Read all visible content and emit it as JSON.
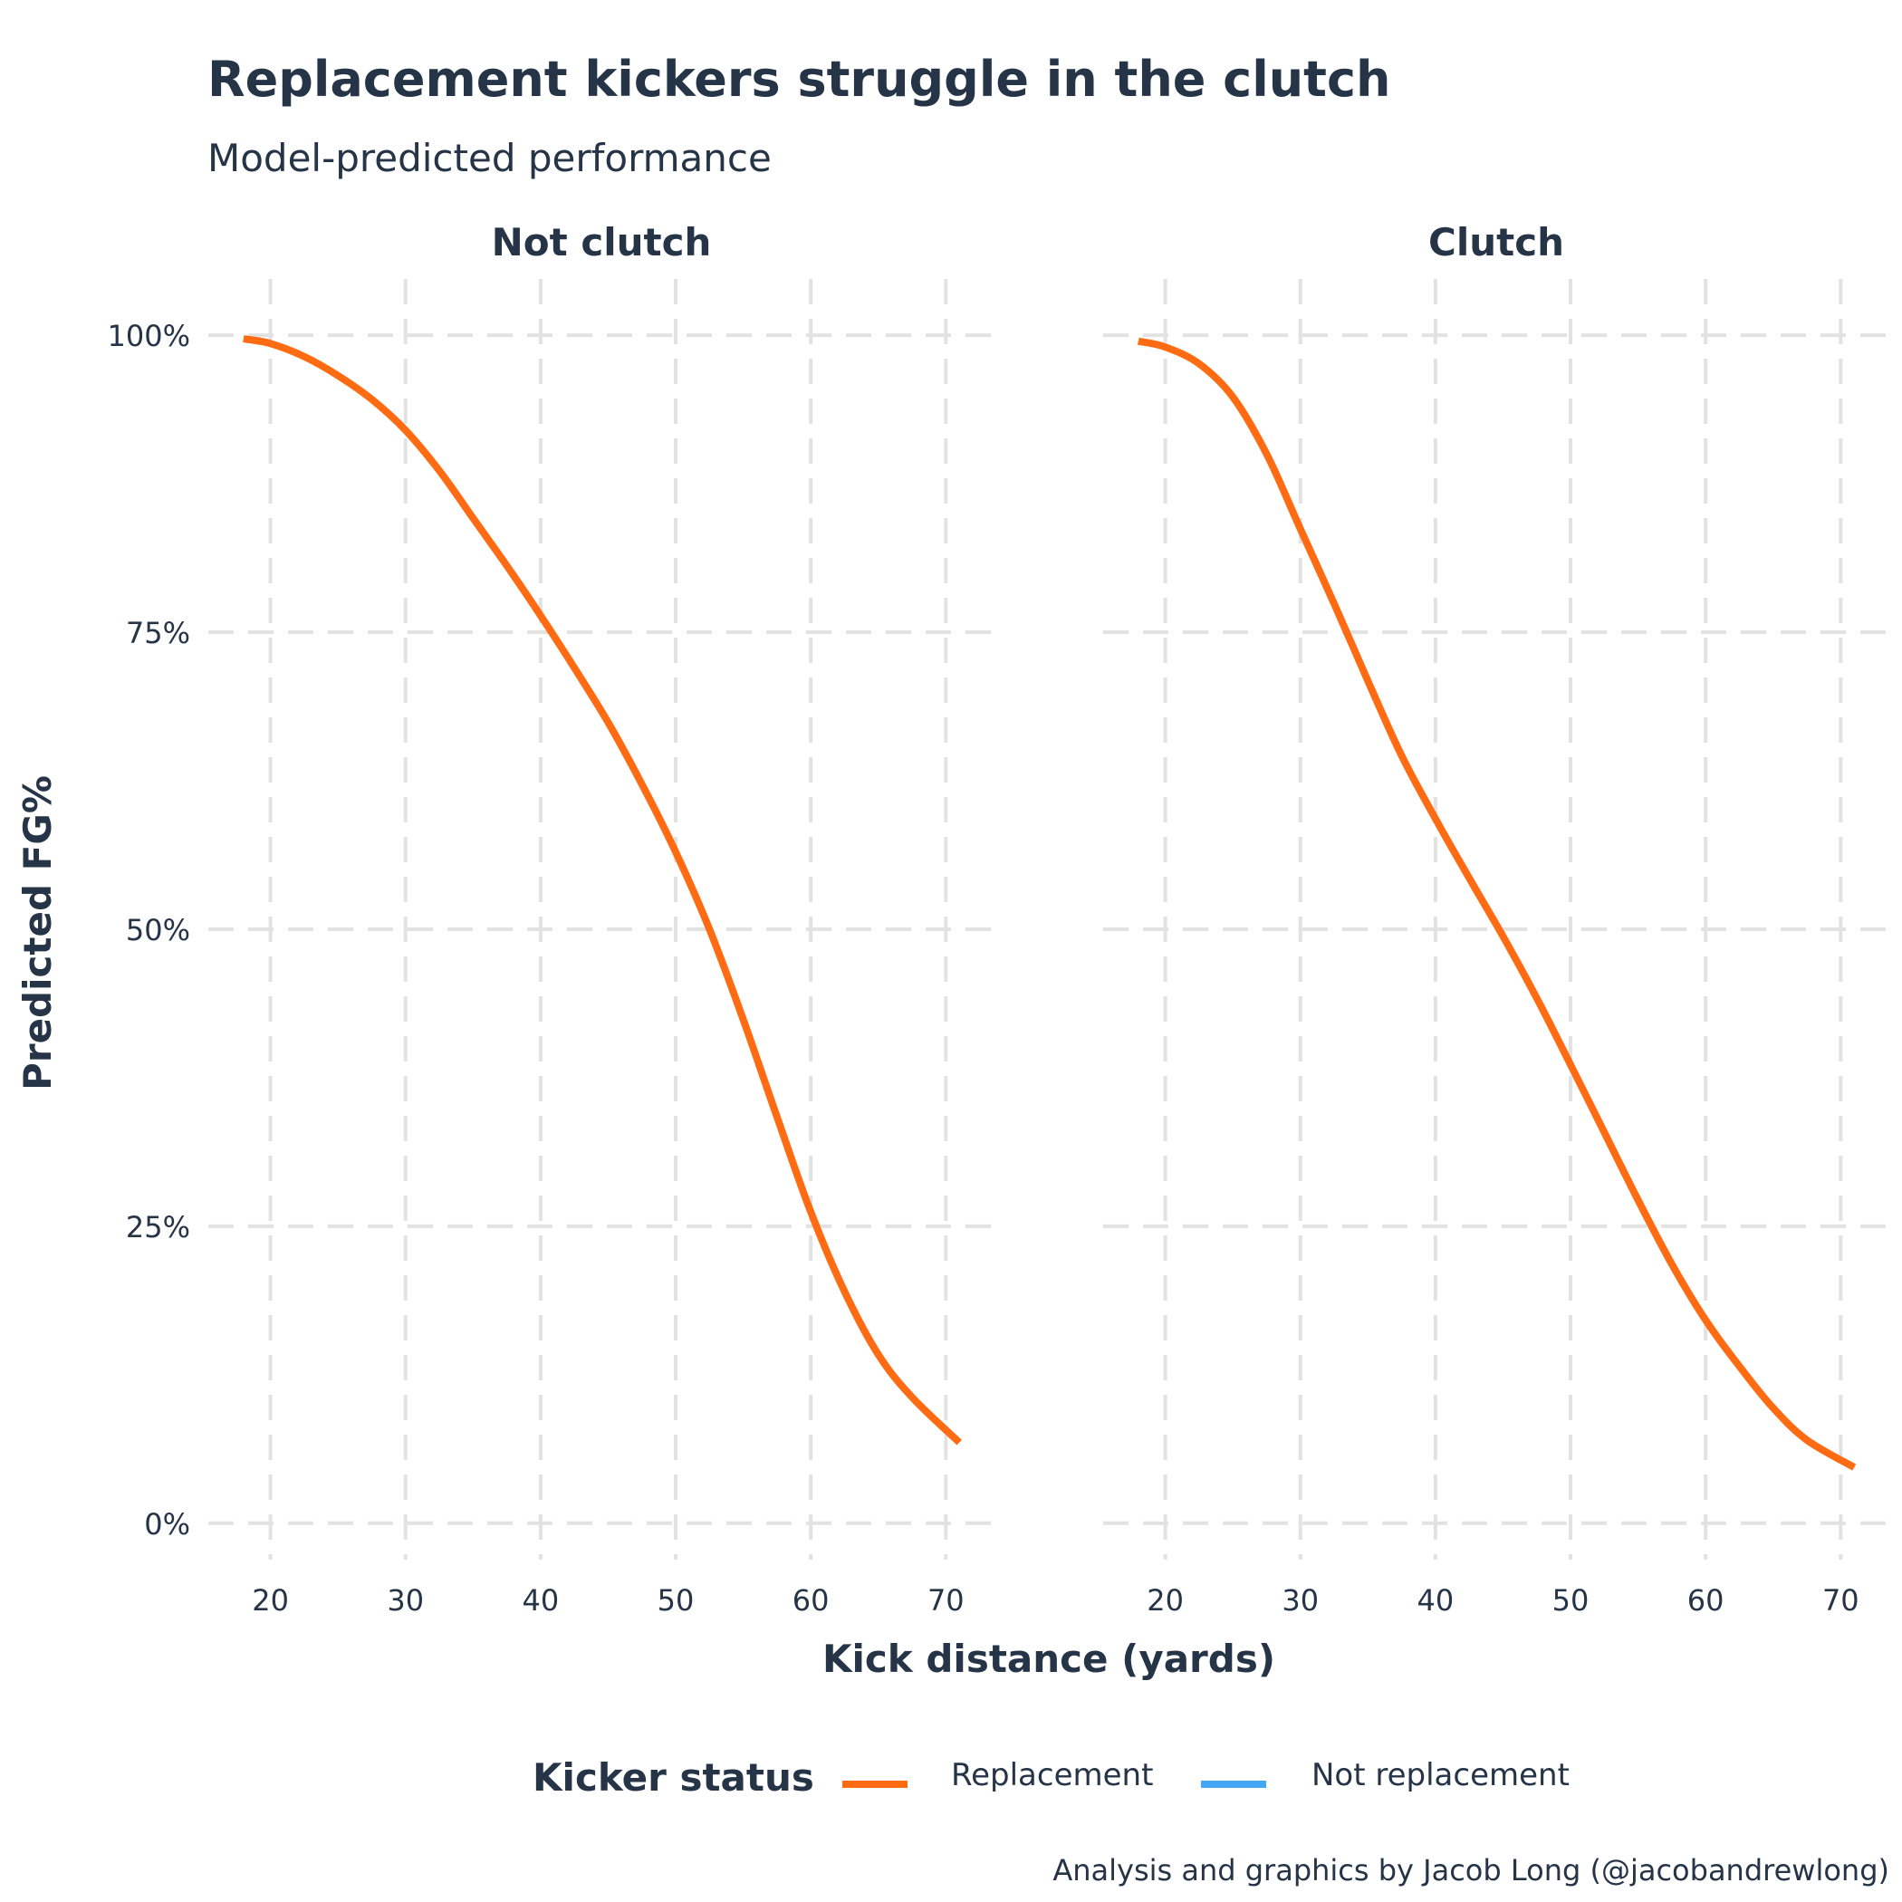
{
  "title": "Replacement kickers struggle in the clutch",
  "subtitle": "Model-predicted performance",
  "caption": "Analysis and graphics by Jacob Long (@jacobandrewlong)",
  "legend": {
    "title": "Kicker status",
    "items": [
      {
        "label": "Replacement",
        "color": "#FF6B12"
      },
      {
        "label": "Not replacement",
        "color": "#42A8F5"
      }
    ]
  },
  "colors": {
    "replacement": "#FF6B12",
    "not_replacement": "#42A8F5",
    "grid": "#E2E2E2",
    "text": "#253446"
  },
  "chart_data": {
    "type": "line",
    "xlabel": "Kick distance (yards)",
    "ylabel": "Predicted FG%",
    "xlim": [
      15.4,
      73.6
    ],
    "ylim": [
      -0.02,
      1.01
    ],
    "x_ticks": [
      20,
      30,
      40,
      50,
      60,
      70
    ],
    "x_tick_labels": [
      "20",
      "30",
      "40",
      "50",
      "60",
      "70"
    ],
    "y_ticks": [
      0,
      0.25,
      0.5,
      0.75,
      1.0
    ],
    "y_tick_labels": [
      "0%",
      "25%",
      "50%",
      "75%",
      "100%"
    ],
    "grid": "dashed",
    "legend_position": "bottom",
    "x": [
      18,
      20,
      22.5,
      25,
      27.5,
      30,
      32.5,
      35,
      37.5,
      40,
      42.5,
      45,
      47.5,
      50,
      52.5,
      55,
      57.5,
      60,
      62.5,
      65,
      67.5,
      71
    ],
    "panels": [
      {
        "name": "Not clutch",
        "series": [
          {
            "name": "Replacement",
            "values": [
              0.997,
              0.993,
              0.982,
              0.966,
              0.946,
              0.92,
              0.886,
              0.846,
              0.806,
              0.764,
              0.72,
              0.674,
              0.622,
              0.565,
              0.5,
              0.424,
              0.342,
              0.262,
              0.195,
              0.142,
              0.106,
              0.068
            ]
          }
        ]
      },
      {
        "name": "Clutch",
        "series": [
          {
            "name": "Replacement",
            "values": [
              0.995,
              0.99,
              0.976,
              0.948,
              0.9,
              0.837,
              0.774,
              0.709,
              0.646,
              0.593,
              0.543,
              0.494,
              0.442,
              0.386,
              0.329,
              0.272,
              0.218,
              0.171,
              0.132,
              0.097,
              0.07,
              0.047
            ]
          }
        ]
      }
    ]
  }
}
